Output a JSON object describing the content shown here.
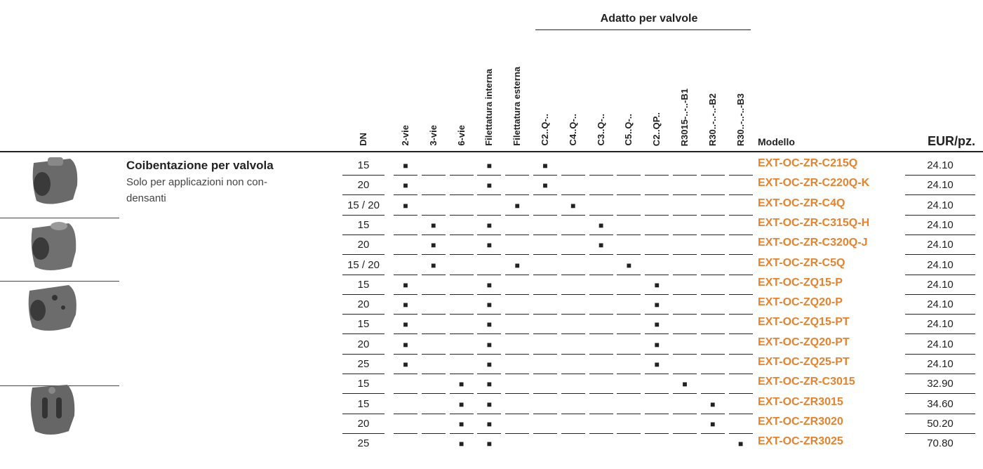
{
  "header": {
    "group": "Adatto per valvole",
    "columns": [
      "DN",
      "2-vie",
      "3-vie",
      "6-vie",
      "Filettatura interna",
      "Filettatura esterna",
      "C2..Q-..",
      "C4..Q-..",
      "C3..Q-..",
      "C5..Q-..",
      "C2..QP..",
      "R3015-..-..-B1",
      "R30..-..-..-B2",
      "R30..-..-..-B3",
      "Modello",
      "EUR/pz."
    ]
  },
  "product": {
    "title": "Coibentazione per valvola",
    "description": [
      "Solo per applicazioni non con-",
      "densanti"
    ]
  },
  "table": {
    "rows": [
      {
        "dn": "15",
        "marks": [
          "■",
          null,
          null,
          "■",
          null,
          "■",
          null,
          null,
          null,
          null,
          null,
          null,
          null
        ],
        "model": "EXT-OC-ZR-C215Q",
        "price": "24.10"
      },
      {
        "dn": "20",
        "marks": [
          "■",
          null,
          null,
          "■",
          null,
          "■",
          null,
          null,
          null,
          null,
          null,
          null,
          null
        ],
        "model": "EXT-OC-ZR-C220Q-K",
        "price": "24.10"
      },
      {
        "dn": "15 / 20",
        "marks": [
          "■",
          null,
          null,
          null,
          "■",
          null,
          "■",
          null,
          null,
          null,
          null,
          null,
          null
        ],
        "model": "EXT-OC-ZR-C4Q",
        "price": "24.10"
      },
      {
        "dn": "15",
        "marks": [
          null,
          "■",
          null,
          "■",
          null,
          null,
          null,
          "■",
          null,
          null,
          null,
          null,
          null
        ],
        "model": "EXT-OC-ZR-C315Q-H",
        "price": "24.10"
      },
      {
        "dn": "20",
        "marks": [
          null,
          "■",
          null,
          "■",
          null,
          null,
          null,
          "■",
          null,
          null,
          null,
          null,
          null
        ],
        "model": "EXT-OC-ZR-C320Q-J",
        "price": "24.10"
      },
      {
        "dn": "15 / 20",
        "marks": [
          null,
          "■",
          null,
          null,
          "■",
          null,
          null,
          null,
          "■",
          null,
          null,
          null,
          null
        ],
        "model": "EXT-OC-ZR-C5Q",
        "price": "24.10"
      },
      {
        "dn": "15",
        "marks": [
          "■",
          null,
          null,
          "■",
          null,
          null,
          null,
          null,
          null,
          "■",
          null,
          null,
          null
        ],
        "model": "EXT-OC-ZQ15-P",
        "price": "24.10"
      },
      {
        "dn": "20",
        "marks": [
          "■",
          null,
          null,
          "■",
          null,
          null,
          null,
          null,
          null,
          "■",
          null,
          null,
          null
        ],
        "model": "EXT-OC-ZQ20-P",
        "price": "24.10"
      },
      {
        "dn": "15",
        "marks": [
          "■",
          null,
          null,
          "■",
          null,
          null,
          null,
          null,
          null,
          "■",
          null,
          null,
          null
        ],
        "model": "EXT-OC-ZQ15-PT",
        "price": "24.10"
      },
      {
        "dn": "20",
        "marks": [
          "■",
          null,
          null,
          "■",
          null,
          null,
          null,
          null,
          null,
          "■",
          null,
          null,
          null
        ],
        "model": "EXT-OC-ZQ20-PT",
        "price": "24.10"
      },
      {
        "dn": "25",
        "marks": [
          "■",
          null,
          null,
          "■",
          null,
          null,
          null,
          null,
          null,
          "■",
          null,
          null,
          null
        ],
        "model": "EXT-OC-ZQ25-PT",
        "price": "24.10"
      },
      {
        "dn": "15",
        "marks": [
          null,
          null,
          "■",
          "■",
          null,
          null,
          null,
          null,
          null,
          null,
          "■",
          null,
          null
        ],
        "model": "EXT-OC-ZR-C3015",
        "price": "32.90"
      },
      {
        "dn": "15",
        "marks": [
          null,
          null,
          "■",
          "■",
          null,
          null,
          null,
          null,
          null,
          null,
          null,
          "■",
          null
        ],
        "model": "EXT-OC-ZR3015",
        "price": "34.60"
      },
      {
        "dn": "20",
        "marks": [
          null,
          null,
          "■",
          "■",
          null,
          null,
          null,
          null,
          null,
          null,
          null,
          "■",
          null
        ],
        "model": "EXT-OC-ZR3020",
        "price": "50.20"
      },
      {
        "dn": "25",
        "marks": [
          null,
          null,
          "■",
          "■",
          null,
          null,
          null,
          null,
          null,
          null,
          null,
          null,
          "■"
        ],
        "model": "EXT-OC-ZR3025",
        "price": "70.80"
      }
    ]
  }
}
